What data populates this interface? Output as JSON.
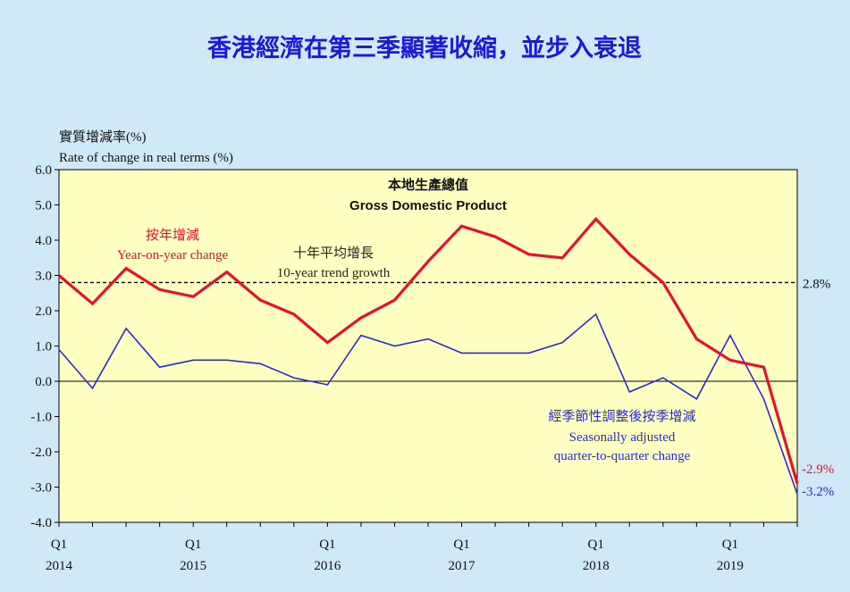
{
  "header": {
    "title": "香港經濟在第三季顯著收縮，並步入衰退"
  },
  "chart_data": {
    "type": "line",
    "title": "本地生產總值",
    "subtitle": "Gross Domestic Product",
    "ylabel_cn": "實質增減率(%)",
    "ylabel_en": "Rate of change in real terms (%)",
    "ylim": [
      -4.0,
      6.0
    ],
    "yticks": [
      "6.0",
      "5.0",
      "4.0",
      "3.0",
      "2.0",
      "1.0",
      "0.0",
      "-1.0",
      "-2.0",
      "-3.0",
      "-4.0"
    ],
    "x": [
      "2014Q1",
      "2014Q2",
      "2014Q3",
      "2014Q4",
      "2015Q1",
      "2015Q2",
      "2015Q3",
      "2015Q4",
      "2016Q1",
      "2016Q2",
      "2016Q3",
      "2016Q4",
      "2017Q1",
      "2017Q2",
      "2017Q3",
      "2017Q4",
      "2018Q1",
      "2018Q2",
      "2018Q3",
      "2018Q4",
      "2019Q1",
      "2019Q2",
      "2019Q3"
    ],
    "xtick_labels": [
      {
        "q": "Q1",
        "year": "2014"
      },
      {
        "q": "Q1",
        "year": "2015"
      },
      {
        "q": "Q1",
        "year": "2016"
      },
      {
        "q": "Q1",
        "year": "2017"
      },
      {
        "q": "Q1",
        "year": "2018"
      },
      {
        "q": "Q1",
        "year": "2019"
      }
    ],
    "series": [
      {
        "name_cn": "按年增減",
        "name_en": "Year-on-year change",
        "color": "#e8102e",
        "values": [
          3.0,
          2.2,
          3.2,
          2.6,
          2.4,
          3.1,
          2.3,
          1.9,
          1.1,
          1.8,
          2.3,
          3.4,
          4.4,
          4.1,
          3.6,
          3.5,
          4.6,
          3.6,
          2.8,
          1.2,
          0.6,
          0.4,
          -2.9
        ],
        "end_label": "-2.9%"
      },
      {
        "name_cn": "經季節性調整後按季增減",
        "name_en_line1": "Seasonally adjusted",
        "name_en_line2": "quarter-to-quarter change",
        "color": "#2a2ad8",
        "values": [
          0.9,
          -0.2,
          1.5,
          0.4,
          0.6,
          0.6,
          0.5,
          0.1,
          -0.1,
          1.3,
          1.0,
          1.2,
          0.8,
          0.8,
          0.8,
          1.1,
          1.9,
          -0.3,
          0.1,
          -0.5,
          1.3,
          -0.5,
          -3.2
        ],
        "end_label": "-3.2%"
      }
    ],
    "reference_line": {
      "value": 2.8,
      "label_cn": "十年平均增長",
      "label_en": "10-year trend growth",
      "end_label": "2.8%"
    },
    "plot_bg": "#ffffc2"
  }
}
